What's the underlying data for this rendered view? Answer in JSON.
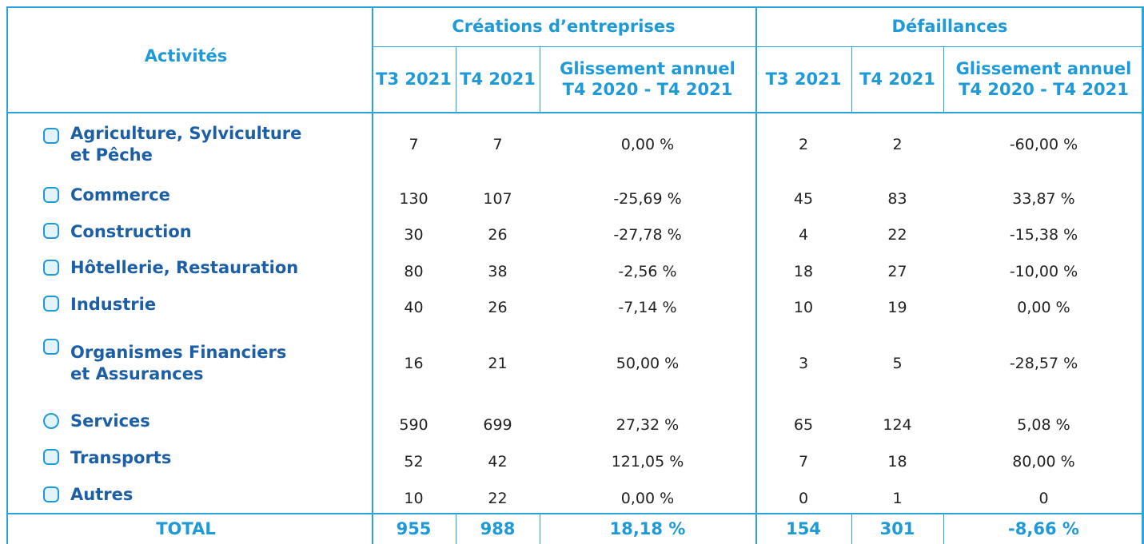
{
  "table": {
    "header": {
      "activity": "Activités",
      "groups": [
        "Créations d’entreprises",
        "Défaillances"
      ],
      "columns": [
        "T3 2021",
        "T4 2021",
        "Glissement annuel\nT4 2020 - T4 2021",
        "T3 2021",
        "T4 2021",
        "Glissement annuel\nT4 2020 - T4 2021"
      ]
    },
    "rows": [
      {
        "activity": "Agriculture, Sylviculture\net Pêche",
        "cells": [
          7,
          7,
          "0,00 %",
          2,
          2,
          "-60,00 %"
        ]
      },
      {
        "activity": "Commerce",
        "cells": [
          130,
          107,
          "-25,69 %",
          45,
          83,
          "33,87 %"
        ]
      },
      {
        "activity": "Construction",
        "cells": [
          30,
          26,
          "-27,78 %",
          4,
          22,
          "-15,38 %"
        ]
      },
      {
        "activity": "Hôtellerie, Restauration",
        "cells": [
          80,
          38,
          "-2,56 %",
          18,
          27,
          "-10,00 %"
        ]
      },
      {
        "activity": "Industrie",
        "cells": [
          40,
          26,
          "-7,14 %",
          10,
          19,
          "0,00 %"
        ]
      },
      {
        "activity": "Organismes Financiers\net Assurances",
        "cells": [
          16,
          21,
          "50,00 %",
          3,
          5,
          "-28,57 %"
        ]
      },
      {
        "activity": "Services",
        "cells": [
          590,
          699,
          "27,32 %",
          65,
          124,
          "5,08 %"
        ]
      },
      {
        "activity": "Transports",
        "cells": [
          52,
          42,
          "121,05 %",
          7,
          18,
          "80,00 %"
        ]
      },
      {
        "activity": "Autres",
        "cells": [
          10,
          22,
          "0,00 %",
          0,
          1,
          "0"
        ]
      }
    ],
    "total": {
      "activity": "TOTAL",
      "cells": [
        955,
        988,
        "18,18 %",
        154,
        301,
        "-8,66 %"
      ]
    }
  }
}
